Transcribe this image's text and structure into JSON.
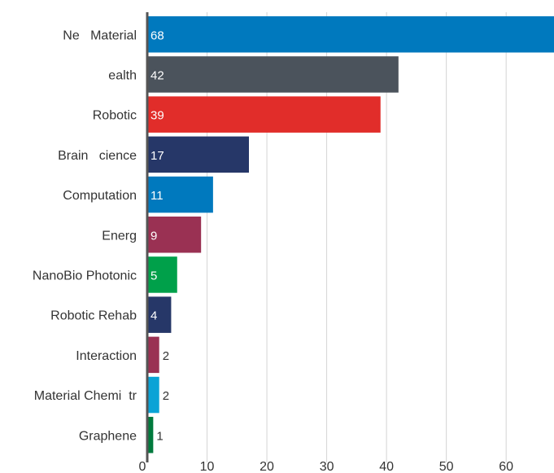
{
  "chart_data": {
    "type": "bar",
    "orientation": "horizontal",
    "title": "",
    "xlabel": "",
    "ylabel": "",
    "categories": [
      "Ne   Material",
      "ealth",
      "Robotic",
      "Brain   cience",
      "Computation",
      "Energ",
      "NanoBio Photonic",
      "Robotic Rehab",
      "Interaction",
      "Material Chemi  tr",
      "Graphene"
    ],
    "values": [
      68,
      42,
      39,
      17,
      11,
      9,
      5,
      4,
      2,
      2,
      1
    ],
    "value_labels": [
      "68",
      "42",
      "39",
      "17",
      "11",
      "9",
      "5",
      "4",
      "2",
      "2",
      "1"
    ],
    "colors": [
      "#0079BE",
      "#4B535C",
      "#E12D2A",
      "#263768",
      "#0079BE",
      "#9A3153",
      "#00A04A",
      "#263768",
      "#9A3153",
      "#0AA3D6",
      "#007A3D"
    ],
    "xlim": [
      0,
      68
    ],
    "xticks": [
      0,
      10,
      20,
      30,
      40,
      50,
      60
    ],
    "xtick_labels": [
      "0",
      "10",
      "20",
      "30",
      "40",
      "50",
      "60"
    ],
    "grid": true,
    "legend": "none"
  }
}
